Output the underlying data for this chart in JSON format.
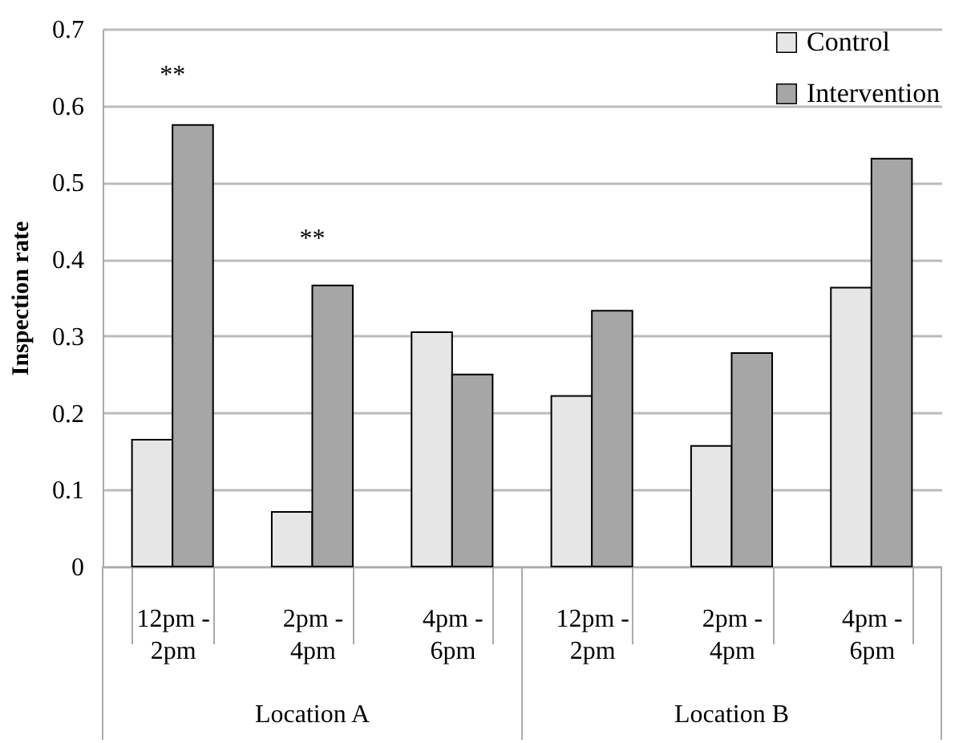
{
  "chart_data": {
    "type": "bar",
    "ylabel": "Inspection rate",
    "categories": [
      "12pm - 2pm",
      "2pm - 4pm",
      "4pm - 6pm",
      "12pm - 2pm",
      "2pm - 4pm",
      "4pm - 6pm"
    ],
    "series": [
      {
        "name": "Control",
        "color": "#e6e6e6",
        "values": [
          0.165,
          0.071,
          0.305,
          0.222,
          0.157,
          0.363
        ]
      },
      {
        "name": "Intervention",
        "color": "#a6a6a6",
        "values": [
          0.575,
          0.366,
          0.25,
          0.333,
          0.278,
          0.531
        ]
      }
    ],
    "ylim": [
      0,
      0.7
    ],
    "yticks": [
      {
        "value": 0,
        "label": "0"
      },
      0.1,
      0.2,
      0.3,
      0.4,
      0.5,
      0.6,
      0.7
    ],
    "grid": "y",
    "legend": "top right",
    "annotations": [
      "**",
      "**",
      "Location A",
      "Location B"
    ]
  }
}
